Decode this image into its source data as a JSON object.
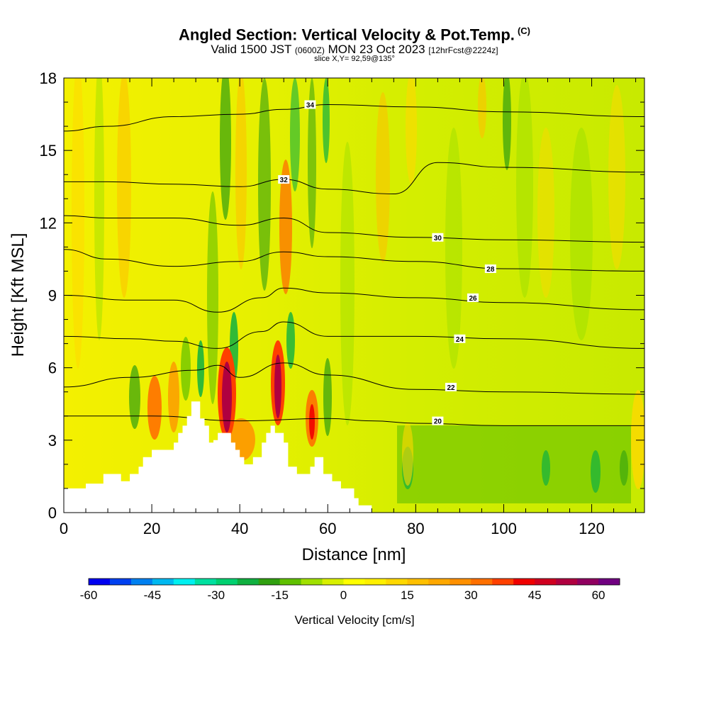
{
  "header": {
    "title": "Angled Section: Vertical Velocity & Pot.Temp.",
    "title_units": "(C)",
    "subtitle_pre": "Valid 1500 JST",
    "subtitle_utc": "(0600Z)",
    "subtitle_mid": "MON 23 Oct 2023",
    "subtitle_fcst": "[12hrFcst@2224z]",
    "slice": "slice X,Y= 92,59@135°"
  },
  "chart_data": {
    "type": "heatmap",
    "xlabel": "Distance [nm]",
    "ylabel": "Height [Kft MSL]",
    "xlim": [
      0,
      132
    ],
    "ylim": [
      0,
      18
    ],
    "x_ticks": [
      0,
      20,
      40,
      60,
      80,
      100,
      120
    ],
    "y_ticks": [
      0,
      3,
      6,
      9,
      12,
      15,
      18
    ],
    "fill_variable": "Vertical Velocity [cm/s]",
    "colorbar": {
      "label": "Vertical Velocity [cm/s]",
      "min": -60,
      "max": 65,
      "step": 5,
      "tick_values": [
        -60,
        -45,
        -30,
        -15,
        0,
        15,
        30,
        45,
        60
      ],
      "colors": [
        "#0000f0",
        "#0040f0",
        "#0080f0",
        "#00b8f0",
        "#00f0f0",
        "#00e0a0",
        "#00d070",
        "#10b040",
        "#30a010",
        "#60c000",
        "#a0e000",
        "#d8f000",
        "#ffff00",
        "#fff000",
        "#ffd800",
        "#ffc000",
        "#ffa800",
        "#ff9000",
        "#ff7000",
        "#ff4000",
        "#f00000",
        "#d00020",
        "#b00040",
        "#900060",
        "#700080"
      ]
    },
    "terrain": {
      "x": [
        0,
        5,
        5,
        9,
        9,
        13,
        13,
        15,
        15,
        17,
        17,
        18,
        18,
        20,
        20,
        25,
        25,
        26,
        26,
        27,
        27,
        28,
        28,
        29,
        29,
        31,
        31,
        32,
        32,
        33,
        33,
        34,
        34,
        35,
        35,
        38,
        38,
        39,
        39,
        40,
        40,
        41,
        41,
        43,
        43,
        45,
        45,
        46,
        46,
        47,
        47,
        48,
        48,
        50,
        50,
        51,
        51,
        53,
        53,
        56,
        56,
        57,
        57,
        59,
        59,
        61,
        61,
        63,
        63,
        66,
        66,
        67,
        67,
        70,
        70,
        74,
        74,
        132
      ],
      "height": [
        1.0,
        1.0,
        1.2,
        1.2,
        1.6,
        1.6,
        1.3,
        1.3,
        1.6,
        1.6,
        1.9,
        1.9,
        2.3,
        2.3,
        2.6,
        2.6,
        2.9,
        2.9,
        3.3,
        3.3,
        3.6,
        3.6,
        4.0,
        4.0,
        4.6,
        4.6,
        3.9,
        3.9,
        3.6,
        3.6,
        2.9,
        2.9,
        3.0,
        3.0,
        3.3,
        3.3,
        2.9,
        2.9,
        2.6,
        2.6,
        2.3,
        2.3,
        2.0,
        2.0,
        2.3,
        2.3,
        2.9,
        2.9,
        3.3,
        3.3,
        3.6,
        3.6,
        3.3,
        3.3,
        2.9,
        2.9,
        1.9,
        1.9,
        1.6,
        1.6,
        1.9,
        1.9,
        2.3,
        2.3,
        1.6,
        1.6,
        1.3,
        1.3,
        1.0,
        1.0,
        0.6,
        0.6,
        0.3,
        0.3,
        0.0,
        0.0,
        0.0
      ]
    },
    "theta_contours": [
      {
        "value": 20,
        "label": "20",
        "x": [
          0,
          20,
          40,
          60,
          70,
          80,
          100,
          132
        ],
        "y": [
          4.0,
          4.0,
          3.8,
          3.9,
          3.8,
          3.7,
          3.6,
          3.6
        ],
        "label_x": 85,
        "label_y": 3.8
      },
      {
        "value": 22,
        "label": "22",
        "x": [
          0,
          15,
          30,
          35,
          40,
          50,
          60,
          80,
          100,
          132
        ],
        "y": [
          5.2,
          5.6,
          5.9,
          6.1,
          5.6,
          6.2,
          5.7,
          5.1,
          5.0,
          4.9
        ],
        "label_x": 88,
        "label_y": 5.2
      },
      {
        "value": 24,
        "label": "24",
        "x": [
          0,
          15,
          25,
          35,
          45,
          50,
          60,
          80,
          100,
          132
        ],
        "y": [
          7.3,
          7.2,
          7.1,
          6.8,
          7.5,
          7.9,
          7.3,
          7.3,
          7.2,
          6.8
        ],
        "label_x": 90,
        "label_y": 7.2
      },
      {
        "value": 26,
        "label": "26",
        "x": [
          0,
          15,
          25,
          35,
          45,
          50,
          60,
          80,
          100,
          132
        ],
        "y": [
          9.0,
          8.8,
          8.8,
          8.3,
          8.9,
          9.3,
          9.1,
          8.9,
          8.7,
          8.4
        ],
        "label_x": 93,
        "label_y": 8.9
      },
      {
        "value": 28,
        "label": "28",
        "x": [
          0,
          10,
          25,
          40,
          50,
          60,
          80,
          100,
          132
        ],
        "y": [
          10.9,
          10.5,
          10.2,
          10.4,
          10.8,
          10.6,
          10.4,
          10.1,
          10.0
        ],
        "label_x": 97,
        "label_y": 10.1
      },
      {
        "value": 30,
        "label": "30",
        "x": [
          0,
          10,
          25,
          40,
          50,
          60,
          80,
          100,
          132
        ],
        "y": [
          12.3,
          12.2,
          12.2,
          11.9,
          12.2,
          11.6,
          11.4,
          11.3,
          11.2
        ],
        "label_x": 85,
        "label_y": 11.4
      },
      {
        "value": 32,
        "label": "32",
        "x": [
          0,
          10,
          25,
          40,
          50,
          60,
          75,
          85,
          100,
          132
        ],
        "y": [
          13.7,
          13.7,
          13.6,
          13.5,
          13.8,
          13.4,
          13.2,
          14.5,
          14.3,
          14.1
        ],
        "label_x": 50,
        "label_y": 13.8
      },
      {
        "value": 34,
        "label": "34",
        "x": [
          0,
          10,
          25,
          40,
          50,
          60,
          80,
          100,
          132
        ],
        "y": [
          15.8,
          16.0,
          16.4,
          16.5,
          16.7,
          16.9,
          16.8,
          16.6,
          16.4
        ],
        "label_x": 56,
        "label_y": 16.9
      }
    ]
  }
}
